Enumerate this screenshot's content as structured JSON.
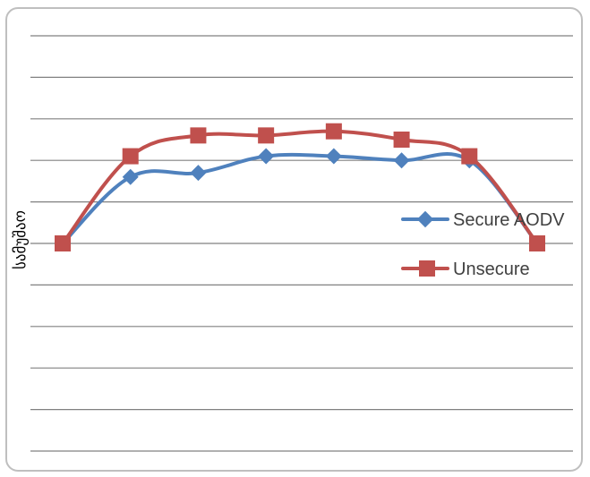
{
  "chart_data": {
    "type": "line",
    "title": "",
    "xlabel": "",
    "ylabel": "სამუშაო",
    "x": [
      1,
      2,
      3,
      4,
      5,
      6,
      7,
      8
    ],
    "ylim": [
      0,
      10
    ],
    "grid": true,
    "legend_position": "right",
    "series": [
      {
        "name": "Secure AODV",
        "color": "#4f81bd",
        "marker": "diamond",
        "values": [
          5.0,
          6.6,
          6.7,
          7.1,
          7.1,
          7.0,
          7.0,
          5.0
        ]
      },
      {
        "name": "Unsecure",
        "color": "#c0504d",
        "marker": "square",
        "values": [
          5.0,
          7.1,
          7.6,
          7.6,
          7.7,
          7.5,
          7.1,
          5.0
        ]
      }
    ]
  }
}
